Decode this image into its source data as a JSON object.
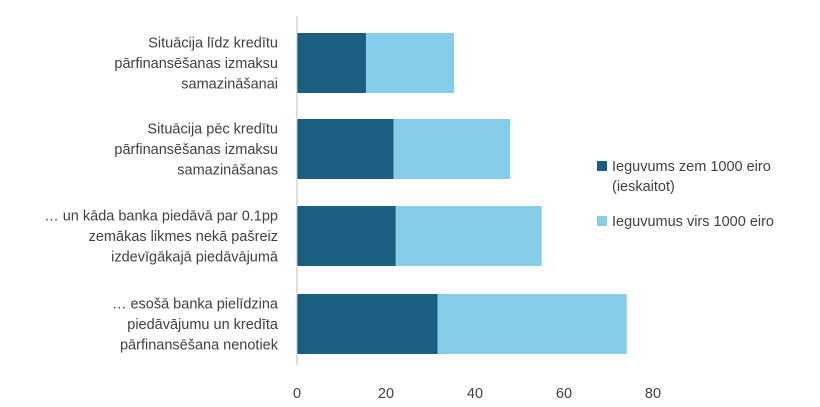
{
  "chart_data": {
    "type": "bar",
    "orientation": "horizontal",
    "stacked": true,
    "categories": [
      [
        "Situācija līdz kredītu",
        "pārfinansēšanas izmaksu",
        "samazināšanai"
      ],
      [
        "Situācija pēc kredītu",
        "pārfinansēšanas izmaksu",
        "samazināšanas"
      ],
      [
        "… un kāda banka piedāvā par 0.1pp",
        "zemākas likmes nekā pašreiz",
        "izdevīgākajā piedāvājumā"
      ],
      [
        "… esošā banka pielīdzina",
        "piedāvājumu un kredīta",
        "pārfinansēšana nenotiek"
      ]
    ],
    "series": [
      {
        "name": [
          "Ieguvums zem 1000 eiro",
          "(ieskaitot)"
        ],
        "values": [
          15.5,
          21.7,
          22.2,
          31.6
        ],
        "color": "#1a5e82"
      },
      {
        "name": [
          "Ieguvumus virs 1000 eiro"
        ],
        "values": [
          19.8,
          26.2,
          32.8,
          42.5
        ],
        "color": "#86cdea"
      }
    ],
    "xlim": [
      0,
      80
    ],
    "xticks": [
      "0",
      "20",
      "40",
      "60",
      "80"
    ],
    "grid": false,
    "legend_position": "right"
  }
}
